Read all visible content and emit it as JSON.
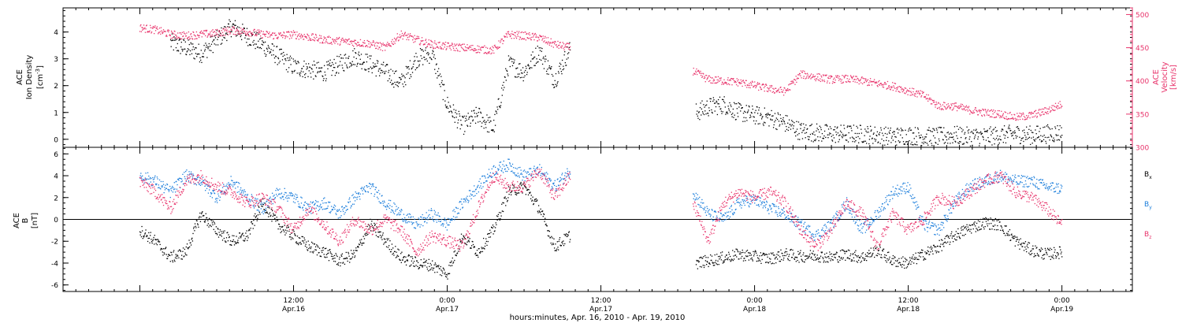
{
  "chart_data": [
    {
      "type": "scatter",
      "panel": "ion-density-velocity",
      "left_axis": {
        "label_lines": [
          "ACE",
          "Ion Density"
        ],
        "unit_prefix": "[cm",
        "unit_sup": "-3",
        "unit_suffix": "]",
        "ylim": [
          -0.3,
          4.9
        ],
        "ticks": [
          0,
          1,
          2,
          3,
          4
        ],
        "color": "#000000"
      },
      "right_axis": {
        "label_lines": [
          "ACE",
          "Velocity"
        ],
        "unit": "[km/s]",
        "ylim": [
          300,
          510
        ],
        "ticks": [
          300,
          350,
          400,
          450,
          500
        ],
        "color": "#e8336b"
      },
      "series": [
        {
          "name": "",
          "axis": "left",
          "color": "#000000",
          "segments": [
            {
              "t": [
                0.1,
                0.2,
                0.3,
                0.4,
                0.5,
                0.6,
                0.7,
                0.75,
                0.8,
                0.85,
                0.9,
                0.95,
                1.0,
                1.05,
                1.1,
                1.15,
                1.2,
                1.25,
                1.3,
                1.35,
                1.4
              ],
              "v": [
                3.6,
                3.2,
                4.2,
                3.5,
                2.7,
                2.5,
                3.1,
                2.8,
                2.5,
                2.1,
                3.0,
                3.2,
                1.3,
                0.5,
                0.9,
                0.4,
                2.8,
                2.5,
                3.3,
                2.2,
                3.4
              ]
            },
            {
              "t": [
                1.81,
                1.85,
                1.9,
                1.95,
                2.0,
                2.05,
                2.1,
                2.15,
                2.2,
                2.25,
                2.3,
                2.35,
                2.4,
                2.45,
                2.5,
                2.55,
                2.6,
                2.65,
                2.7,
                2.75,
                2.8,
                2.85,
                2.9,
                2.95,
                3.0
              ],
              "v": [
                1.0,
                1.2,
                1.3,
                1.0,
                0.9,
                0.8,
                0.6,
                0.3,
                0.25,
                0.2,
                0.2,
                0.2,
                0.15,
                0.1,
                0.15,
                0.1,
                0.1,
                0.15,
                0.1,
                0.1,
                0.15,
                0.2,
                0.15,
                0.2,
                0.25
              ]
            }
          ]
        },
        {
          "name": "",
          "axis": "right",
          "color": "#e8336b",
          "segments": [
            {
              "t": [
                0.0,
                0.05,
                0.1,
                0.15,
                0.2,
                0.25,
                0.3,
                0.35,
                0.4,
                0.45,
                0.5,
                0.55,
                0.6,
                0.65,
                0.7,
                0.75,
                0.8,
                0.85,
                0.9,
                0.95,
                1.0,
                1.05,
                1.1,
                1.15,
                1.2,
                1.25,
                1.3,
                1.35,
                1.4
              ],
              "v": [
                480,
                477,
                470,
                468,
                470,
                472,
                476,
                474,
                470,
                468,
                470,
                466,
                462,
                460,
                458,
                456,
                450,
                470,
                462,
                455,
                452,
                450,
                448,
                446,
                470,
                468,
                465,
                455,
                450
              ]
            },
            {
              "t": [
                1.8,
                1.85,
                1.9,
                1.95,
                2.0,
                2.05,
                2.1,
                2.15,
                2.2,
                2.25,
                2.3,
                2.35,
                2.4,
                2.45,
                2.5,
                2.55,
                2.6,
                2.65,
                2.7,
                2.75,
                2.8,
                2.85,
                2.9,
                2.95,
                3.0
              ],
              "v": [
                415,
                402,
                400,
                398,
                393,
                388,
                384,
                410,
                406,
                402,
                403,
                400,
                396,
                392,
                385,
                378,
                362,
                362,
                356,
                352,
                350,
                345,
                348,
                355,
                365
              ]
            }
          ]
        }
      ]
    },
    {
      "type": "scatter",
      "panel": "magnetic-field",
      "left_axis": {
        "label_lines": [
          "ACE",
          "B"
        ],
        "unit": "[nT]",
        "ylim": [
          -6.6,
          6.6
        ],
        "ticks": [
          -6,
          -4,
          -2,
          0,
          2,
          4,
          6
        ],
        "color": "#000000"
      },
      "zero_line": true,
      "legend_placement": "right",
      "series": [
        {
          "name": "B",
          "subscript": "x",
          "color": "#000000",
          "segments": [
            {
              "t": [
                0.0,
                0.05,
                0.1,
                0.15,
                0.2,
                0.25,
                0.3,
                0.35,
                0.4,
                0.45,
                0.5,
                0.55,
                0.6,
                0.65,
                0.7,
                0.75,
                0.8,
                0.85,
                0.9,
                0.95,
                1.0,
                1.05,
                1.1,
                1.15,
                1.2,
                1.25,
                1.3,
                1.35,
                1.4
              ],
              "v": [
                -1.0,
                -2.0,
                -3.5,
                -3.0,
                0.5,
                -1.0,
                -2.0,
                -1.5,
                1.5,
                -0.5,
                -1.5,
                -2.5,
                -3.0,
                -3.8,
                -3.2,
                -0.5,
                -2.0,
                -3.5,
                -4.0,
                -4.2,
                -5.0,
                -1.5,
                -3.0,
                -1.0,
                2.5,
                3.0,
                1.0,
                -2.5,
                -1.5
              ]
            },
            {
              "t": [
                1.81,
                1.85,
                1.9,
                1.95,
                2.0,
                2.05,
                2.1,
                2.15,
                2.2,
                2.25,
                2.3,
                2.35,
                2.4,
                2.45,
                2.5,
                2.55,
                2.6,
                2.65,
                2.7,
                2.75,
                2.8,
                2.85,
                2.9,
                2.95,
                3.0
              ],
              "v": [
                -4.0,
                -3.8,
                -3.5,
                -3.2,
                -3.4,
                -3.6,
                -3.2,
                -3.4,
                -3.3,
                -3.5,
                -3.2,
                -3.5,
                -2.8,
                -3.8,
                -4.0,
                -3.2,
                -2.5,
                -1.5,
                -0.8,
                -0.3,
                -0.5,
                -2.0,
                -2.8,
                -3.2,
                -3.0
              ]
            }
          ]
        },
        {
          "name": "B",
          "subscript": "y",
          "color": "#1a7ddb",
          "segments": [
            {
              "t": [
                0.0,
                0.05,
                0.1,
                0.15,
                0.2,
                0.25,
                0.3,
                0.35,
                0.4,
                0.45,
                0.5,
                0.55,
                0.6,
                0.65,
                0.7,
                0.75,
                0.8,
                0.85,
                0.9,
                0.95,
                1.0,
                1.05,
                1.1,
                1.15,
                1.2,
                1.25,
                1.3,
                1.35,
                1.4
              ],
              "v": [
                4.0,
                3.5,
                2.5,
                4.0,
                3.5,
                2.0,
                3.5,
                2.0,
                1.0,
                2.5,
                2.0,
                1.0,
                1.5,
                0.5,
                2.0,
                3.0,
                1.5,
                0.5,
                -0.5,
                0.5,
                -0.5,
                1.5,
                3.0,
                4.5,
                5.0,
                4.0,
                4.5,
                3.0,
                4.5
              ]
            },
            {
              "t": [
                1.8,
                1.85,
                1.9,
                1.95,
                2.0,
                2.05,
                2.1,
                2.15,
                2.2,
                2.25,
                2.3,
                2.35,
                2.4,
                2.45,
                2.5,
                2.55,
                2.6,
                2.65,
                2.7,
                2.75,
                2.8,
                2.85,
                2.9,
                2.95,
                3.0
              ],
              "v": [
                2.5,
                0.5,
                0.0,
                1.5,
                1.8,
                1.0,
                0.5,
                -0.5,
                -1.5,
                -0.5,
                1.5,
                -1.0,
                0.5,
                2.5,
                3.0,
                -0.5,
                -1.0,
                1.5,
                3.0,
                3.5,
                4.0,
                3.5,
                3.5,
                3.0,
                2.8
              ]
            }
          ]
        },
        {
          "name": "B",
          "subscript": "z",
          "color": "#e8336b",
          "segments": [
            {
              "t": [
                0.0,
                0.05,
                0.1,
                0.15,
                0.2,
                0.25,
                0.3,
                0.35,
                0.4,
                0.45,
                0.5,
                0.55,
                0.6,
                0.65,
                0.7,
                0.75,
                0.8,
                0.85,
                0.9,
                0.95,
                1.0,
                1.05,
                1.1,
                1.15,
                1.2,
                1.25,
                1.3,
                1.35,
                1.4
              ],
              "v": [
                3.5,
                2.5,
                1.0,
                3.5,
                4.0,
                3.0,
                2.5,
                1.5,
                2.0,
                1.0,
                -1.0,
                1.0,
                -0.5,
                -2.0,
                0.0,
                -1.0,
                0.0,
                -1.0,
                -3.0,
                -1.5,
                -2.0,
                -2.5,
                1.0,
                4.0,
                3.0,
                3.0,
                4.5,
                2.0,
                4.0
              ]
            },
            {
              "t": [
                1.8,
                1.85,
                1.9,
                1.95,
                2.0,
                2.05,
                2.1,
                2.15,
                2.2,
                2.25,
                2.3,
                2.35,
                2.4,
                2.45,
                2.5,
                2.55,
                2.6,
                2.65,
                2.7,
                2.75,
                2.8,
                2.85,
                2.9,
                2.95,
                3.0
              ],
              "v": [
                1.5,
                -2.0,
                1.5,
                2.5,
                2.0,
                2.5,
                1.5,
                -1.0,
                -2.5,
                -1.0,
                1.5,
                0.5,
                -2.5,
                0.5,
                -1.0,
                0.0,
                2.0,
                1.5,
                2.5,
                3.5,
                4.0,
                2.5,
                2.0,
                1.0,
                -0.5
              ]
            }
          ]
        }
      ]
    }
  ],
  "x_axis": {
    "range": [
      "Apr.15 18:00",
      "Apr.19 05:30"
    ],
    "tick_labels": [
      {
        "time": "12:00",
        "date": "Apr.16"
      },
      {
        "time": "0:00",
        "date": "Apr.17"
      },
      {
        "time": "12:00",
        "date": "Apr.17"
      },
      {
        "time": "0:00",
        "date": "Apr.18"
      },
      {
        "time": "12:00",
        "date": "Apr.18"
      },
      {
        "time": "0:00",
        "date": "Apr.19"
      }
    ],
    "xlabel": "hours:minutes, Apr. 16, 2010 - Apr. 19, 2010"
  }
}
